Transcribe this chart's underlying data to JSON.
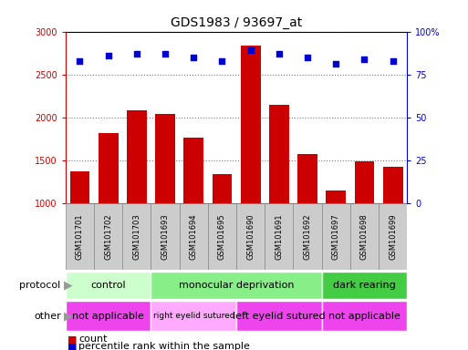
{
  "title": "GDS1983 / 93697_at",
  "samples": [
    "GSM101701",
    "GSM101702",
    "GSM101703",
    "GSM101693",
    "GSM101694",
    "GSM101695",
    "GSM101690",
    "GSM101691",
    "GSM101692",
    "GSM101697",
    "GSM101698",
    "GSM101699"
  ],
  "counts": [
    1370,
    1820,
    2080,
    2040,
    1760,
    1340,
    2840,
    2140,
    1570,
    1150,
    1490,
    1420
  ],
  "percentile_ranks": [
    83,
    86,
    87,
    87,
    85,
    83,
    89,
    87,
    85,
    81,
    84,
    83
  ],
  "bar_color": "#cc0000",
  "dot_color": "#0000cc",
  "ylim_left": [
    1000,
    3000
  ],
  "ylim_right": [
    0,
    100
  ],
  "yticks_left": [
    1000,
    1500,
    2000,
    2500,
    3000
  ],
  "yticks_right": [
    0,
    25,
    50,
    75,
    100
  ],
  "protocol_groups": [
    {
      "label": "control",
      "start": 0,
      "end": 3,
      "color": "#ccffcc"
    },
    {
      "label": "monocular deprivation",
      "start": 3,
      "end": 9,
      "color": "#88ee88"
    },
    {
      "label": "dark rearing",
      "start": 9,
      "end": 12,
      "color": "#44cc44"
    }
  ],
  "other_groups": [
    {
      "label": "not applicable",
      "start": 0,
      "end": 3,
      "color": "#ee44ee"
    },
    {
      "label": "right eyelid sutured",
      "start": 3,
      "end": 6,
      "color": "#ffaaff"
    },
    {
      "label": "left eyelid sutured",
      "start": 6,
      "end": 9,
      "color": "#ee44ee"
    },
    {
      "label": "not applicable",
      "start": 9,
      "end": 12,
      "color": "#ee44ee"
    }
  ],
  "protocol_label": "protocol",
  "other_label": "other",
  "legend_count_label": "count",
  "legend_pct_label": "percentile rank within the sample",
  "grid_color": "#777777",
  "tick_color_left": "#cc0000",
  "tick_color_right": "#0000cc",
  "bg_color": "#ffffff",
  "bar_width": 0.7,
  "xtick_bg_color": "#cccccc",
  "xtick_border_color": "#888888"
}
